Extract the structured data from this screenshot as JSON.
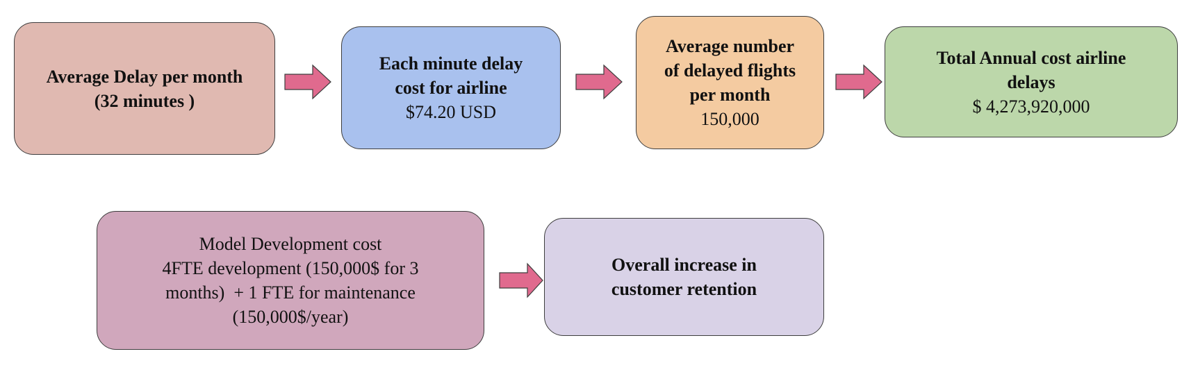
{
  "diagram": {
    "boxes": {
      "avg_delay": {
        "title_line1": "Average Delay per month",
        "title_line2": "(32 minutes )",
        "color": "#e0b9b1"
      },
      "minute_cost": {
        "title_line1": "Each minute delay",
        "title_line2": "cost for airline",
        "value": "$74.20 USD",
        "color": "#a9c1ee"
      },
      "delayed_flights": {
        "title_line1": "Average number",
        "title_line2": "of delayed flights",
        "title_line3": "per month",
        "value": "150,000",
        "color": "#f4cba1"
      },
      "total_annual": {
        "title_line1": "Total Annual cost airline",
        "title_line2": "delays",
        "value": "$ 4,273,920,000",
        "color": "#bcd7aa"
      },
      "model_dev": {
        "line1": "Model Development cost",
        "line2": "4FTE development (150,000$ for 3",
        "line3": "months)  + 1 FTE for maintenance",
        "line4": "(150,000$/year)",
        "color": "#d0a7bc"
      },
      "retention": {
        "title_line1": "Overall increase in",
        "title_line2": "customer retention",
        "color": "#d9d2e7"
      }
    },
    "arrow_color": "#e06a8e",
    "border_color": "#3d3d3d"
  }
}
